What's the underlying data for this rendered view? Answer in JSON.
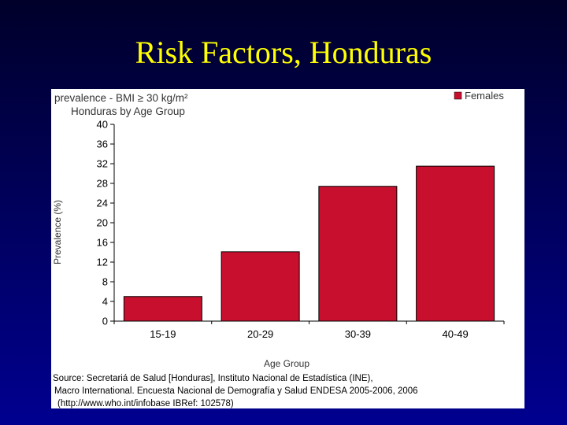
{
  "slide_title": "Risk Factors, Honduras",
  "chart_data": {
    "type": "bar",
    "title": "prevalence - BMI ≥ 30 kg/m²",
    "subtitle": "Honduras by Age Group",
    "x_label": "Age Group",
    "y_label": "Prevalence (%)",
    "categories": [
      "15-19",
      "20-29",
      "30-39",
      "40-49"
    ],
    "series": [
      {
        "name": "Females",
        "color": "#c8102e",
        "values": [
          5.0,
          14.1,
          27.4,
          31.5
        ]
      }
    ],
    "ylim": [
      0,
      40
    ],
    "yticks": [
      0,
      4,
      8,
      12,
      16,
      20,
      24,
      28,
      32,
      36,
      40
    ],
    "legend": "top-right",
    "grid": false,
    "source": [
      "Source: Secretariá de Salud [Honduras], Instituto Nacional de Estadística (INE),",
      "Macro International. Encuesta Nacional de Demografía y Salud ENDESA 2005-2006, 2006",
      "(http://www.who.int/infobase IBRef: 102578)"
    ]
  }
}
